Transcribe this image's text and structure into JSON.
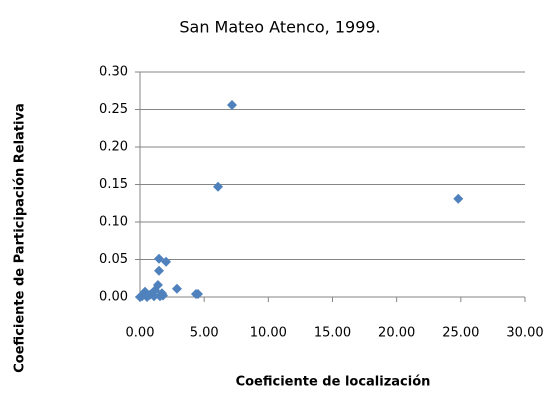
{
  "chart_data": {
    "type": "scatter",
    "title": "San Mateo Atenco, 1999.",
    "x_label": "Coeficiente de localización",
    "y_label": "Coeficiente de Participación Relativa",
    "color": "#4f81bd",
    "grid": true,
    "xlim": [
      0,
      30
    ],
    "ylim": [
      0,
      0.3
    ],
    "xticks": [
      {
        "value": 0,
        "label": "0.00"
      },
      {
        "value": 5,
        "label": "5.00"
      },
      {
        "value": 10,
        "label": "10.00"
      },
      {
        "value": 15,
        "label": "15.00"
      },
      {
        "value": 20,
        "label": "20.00"
      },
      {
        "value": 25,
        "label": "25.00"
      },
      {
        "value": 30,
        "label": "30.00"
      }
    ],
    "yticks": [
      {
        "value": 0,
        "label": "0.00"
      },
      {
        "value": 0.05,
        "label": "0.05"
      },
      {
        "value": 0.1,
        "label": "0.10"
      },
      {
        "value": 0.15,
        "label": "0.15"
      },
      {
        "value": 0.2,
        "label": "0.20"
      },
      {
        "value": 0.25,
        "label": "0.25"
      },
      {
        "value": 0.3,
        "label": "0.30"
      }
    ],
    "x": [
      7.17,
      6.08,
      24.8,
      1.48,
      2.03,
      1.48,
      1.4,
      2.88,
      4.52,
      4.36,
      0.39,
      0.78,
      1.71,
      0,
      0.16,
      0.55,
      1.09,
      1.56,
      1.17,
      1.79
    ],
    "values": [
      0.256,
      0.147,
      0.131,
      0.051,
      0.047,
      0.035,
      0.016,
      0.011,
      0.004,
      0.004,
      0.007,
      0.003,
      0.005,
      0,
      0.001,
      0,
      0.001,
      0.001,
      0.009,
      0.002
    ]
  }
}
